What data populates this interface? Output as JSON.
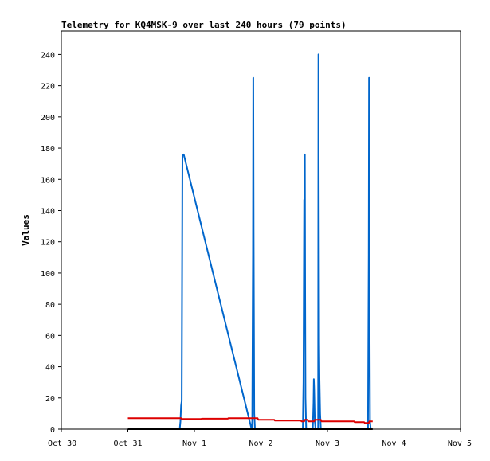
{
  "chart_data": {
    "type": "line",
    "title": "Telemetry for KQ4MSK-9 over last 240 hours (79 points)",
    "xlabel": "",
    "ylabel": "Values",
    "x_tick_labels": [
      "Oct 30",
      "Oct 31",
      "Nov 1",
      "Nov 2",
      "Nov 3",
      "Nov 4",
      "Nov 5"
    ],
    "xlim": [
      0,
      6
    ],
    "ylim": [
      0,
      255
    ],
    "y_ticks": [
      0,
      20,
      40,
      60,
      80,
      100,
      120,
      140,
      160,
      180,
      200,
      220,
      240
    ],
    "grid": false,
    "legend": "none",
    "series": [
      {
        "color": "#0066cc",
        "x": [
          1.0,
          1.78,
          1.79,
          1.8,
          1.81,
          1.82,
          1.84,
          2.86,
          2.87,
          2.88,
          2.885,
          2.89,
          2.9,
          2.91,
          3.63,
          3.64,
          3.65,
          3.655,
          3.66,
          3.665,
          3.67,
          3.68,
          3.78,
          3.79,
          3.795,
          3.8,
          3.81,
          3.82,
          3.86,
          3.865,
          3.87,
          3.875,
          3.88,
          3.89,
          3.9,
          4.61,
          4.62,
          4.625,
          4.63,
          4.635,
          4.64,
          4.65
        ],
        "y": [
          0,
          0,
          5,
          15,
          18,
          175,
          176,
          0,
          5,
          112,
          225,
          128,
          10,
          0,
          0,
          30,
          147,
          88,
          176,
          88,
          20,
          0,
          0,
          17,
          32,
          26,
          6,
          0,
          0,
          240,
          153,
          55,
          32,
          10,
          0,
          0,
          112,
          225,
          168,
          56,
          5,
          0
        ]
      },
      {
        "color": "#dd0000",
        "x": [
          1.0,
          1.8,
          1.81,
          2.1,
          2.11,
          2.5,
          2.51,
          2.95,
          2.96,
          3.2,
          3.21,
          3.6,
          3.61,
          3.65,
          3.66,
          3.7,
          3.71,
          3.8,
          3.81,
          3.9,
          3.91,
          4.1,
          4.11,
          4.4,
          4.41,
          4.55,
          4.56,
          4.62,
          4.63,
          4.68
        ],
        "y": [
          7,
          7,
          6.5,
          6.5,
          6.7,
          6.7,
          7,
          7,
          6,
          6,
          5.5,
          5.5,
          5,
          5,
          6,
          6,
          5,
          5,
          6,
          6,
          5,
          5,
          5,
          5,
          4.5,
          4.5,
          4,
          4,
          5,
          5
        ]
      },
      {
        "color": "#000000",
        "x": [
          1.0,
          4.68
        ],
        "y": [
          0,
          0
        ]
      }
    ]
  }
}
